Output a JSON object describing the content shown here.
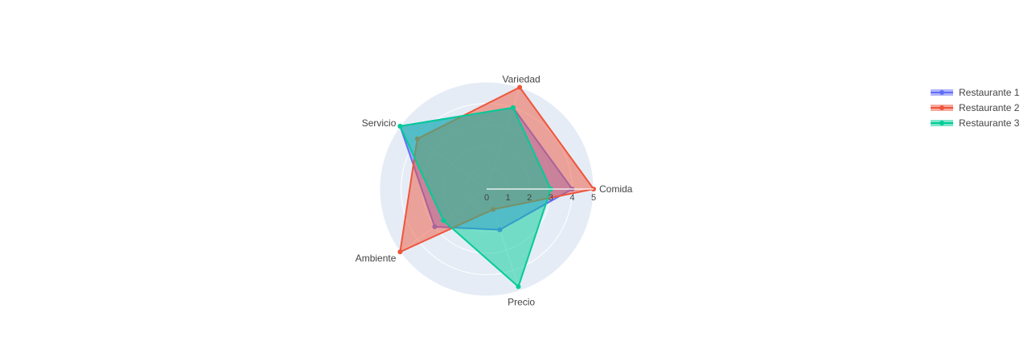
{
  "chart_data": {
    "type": "radar",
    "axes": [
      "Comida",
      "Variedad",
      "Servicio",
      "Ambiente",
      "Precio"
    ],
    "radial_range": [
      0,
      5
    ],
    "radial_ticks": [
      "0",
      "1",
      "2",
      "3",
      "4",
      "5"
    ],
    "grid": true,
    "legend_position": "top-right",
    "series": [
      {
        "name": "Restaurante 1",
        "values": [
          4,
          4,
          5,
          3,
          2
        ],
        "color": "#636efa"
      },
      {
        "name": "Restaurante 2",
        "values": [
          5,
          5,
          4,
          5,
          1
        ],
        "color": "#ef553b"
      },
      {
        "name": "Restaurante 3",
        "values": [
          3,
          4,
          5,
          2.5,
          4.8
        ],
        "color": "#00cc96"
      }
    ],
    "polar_background": "#e5ecf6",
    "grid_color": "#ffffff"
  }
}
